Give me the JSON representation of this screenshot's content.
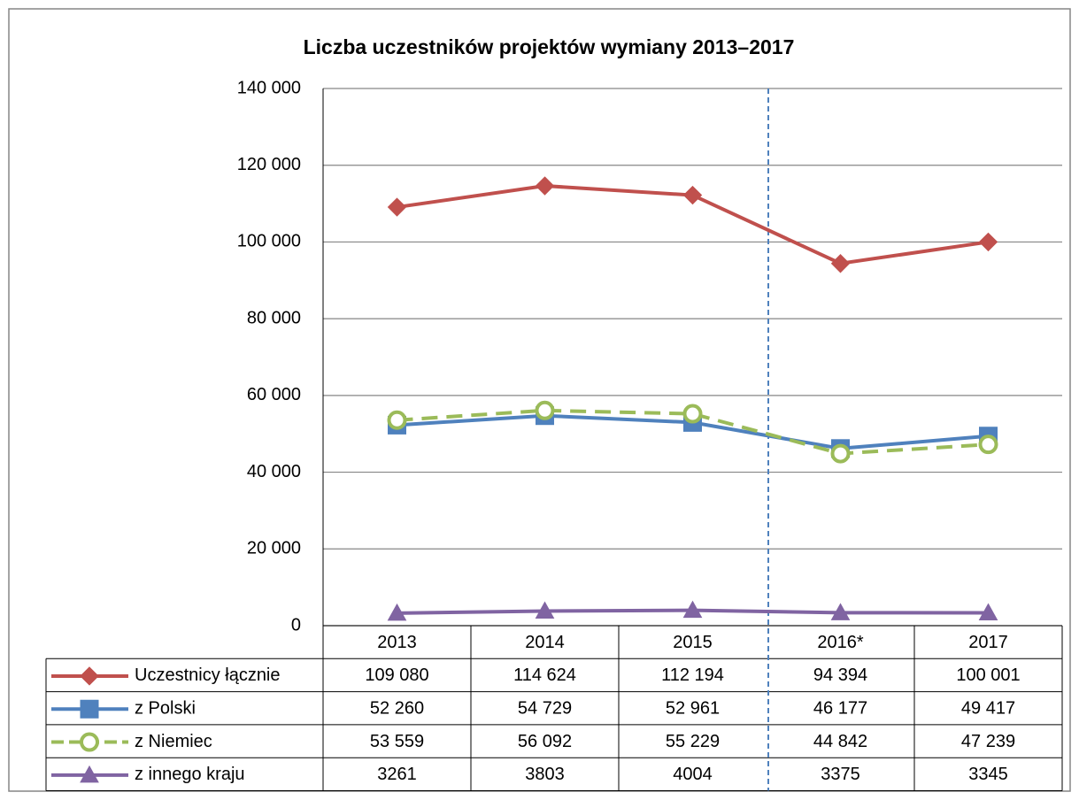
{
  "chart_data": {
    "type": "line",
    "title": "Liczba uczestników projektów wymiany 2013–2017",
    "categories": [
      "2013",
      "2014",
      "2015",
      "2016*",
      "2017"
    ],
    "ylim": [
      0,
      140000
    ],
    "yticks": [
      0,
      {
        "value": 20000,
        "label": "20 000"
      },
      {
        "value": 40000,
        "label": "40 000"
      },
      {
        "value": 60000,
        "label": "60 000"
      },
      {
        "value": 80000,
        "label": "80 000"
      },
      {
        "value": 100000,
        "label": "100 000"
      },
      {
        "value": 120000,
        "label": "120 000"
      },
      {
        "value": 140000,
        "label": "140 000"
      }
    ],
    "grid": true,
    "series": [
      {
        "name": "Uczestnicy łącznie",
        "color": "#c0504d",
        "marker": "diamond",
        "dashed": false,
        "values": [
          109080,
          114624,
          112194,
          94394,
          100001
        ],
        "value_labels": [
          "109 080",
          "114 624",
          "112 194",
          "94 394",
          "100 001"
        ]
      },
      {
        "name": "z Polski",
        "color": "#4f81bd",
        "marker": "square",
        "dashed": false,
        "values": [
          52260,
          54729,
          52961,
          46177,
          49417
        ],
        "value_labels": [
          "52 260",
          "54 729",
          "52 961",
          "46 177",
          "49 417"
        ]
      },
      {
        "name": "z Niemiec",
        "color": "#9bbb59",
        "marker": "circle",
        "dashed": true,
        "values": [
          53559,
          56092,
          55229,
          44842,
          47239
        ],
        "value_labels": [
          "53 559",
          "56 092",
          "55 229",
          "44 842",
          "47 239"
        ]
      },
      {
        "name": "z innego kraju",
        "color": "#8064a2",
        "marker": "triangle",
        "dashed": false,
        "values": [
          3261,
          3803,
          4004,
          3375,
          3345
        ]
      }
    ]
  }
}
